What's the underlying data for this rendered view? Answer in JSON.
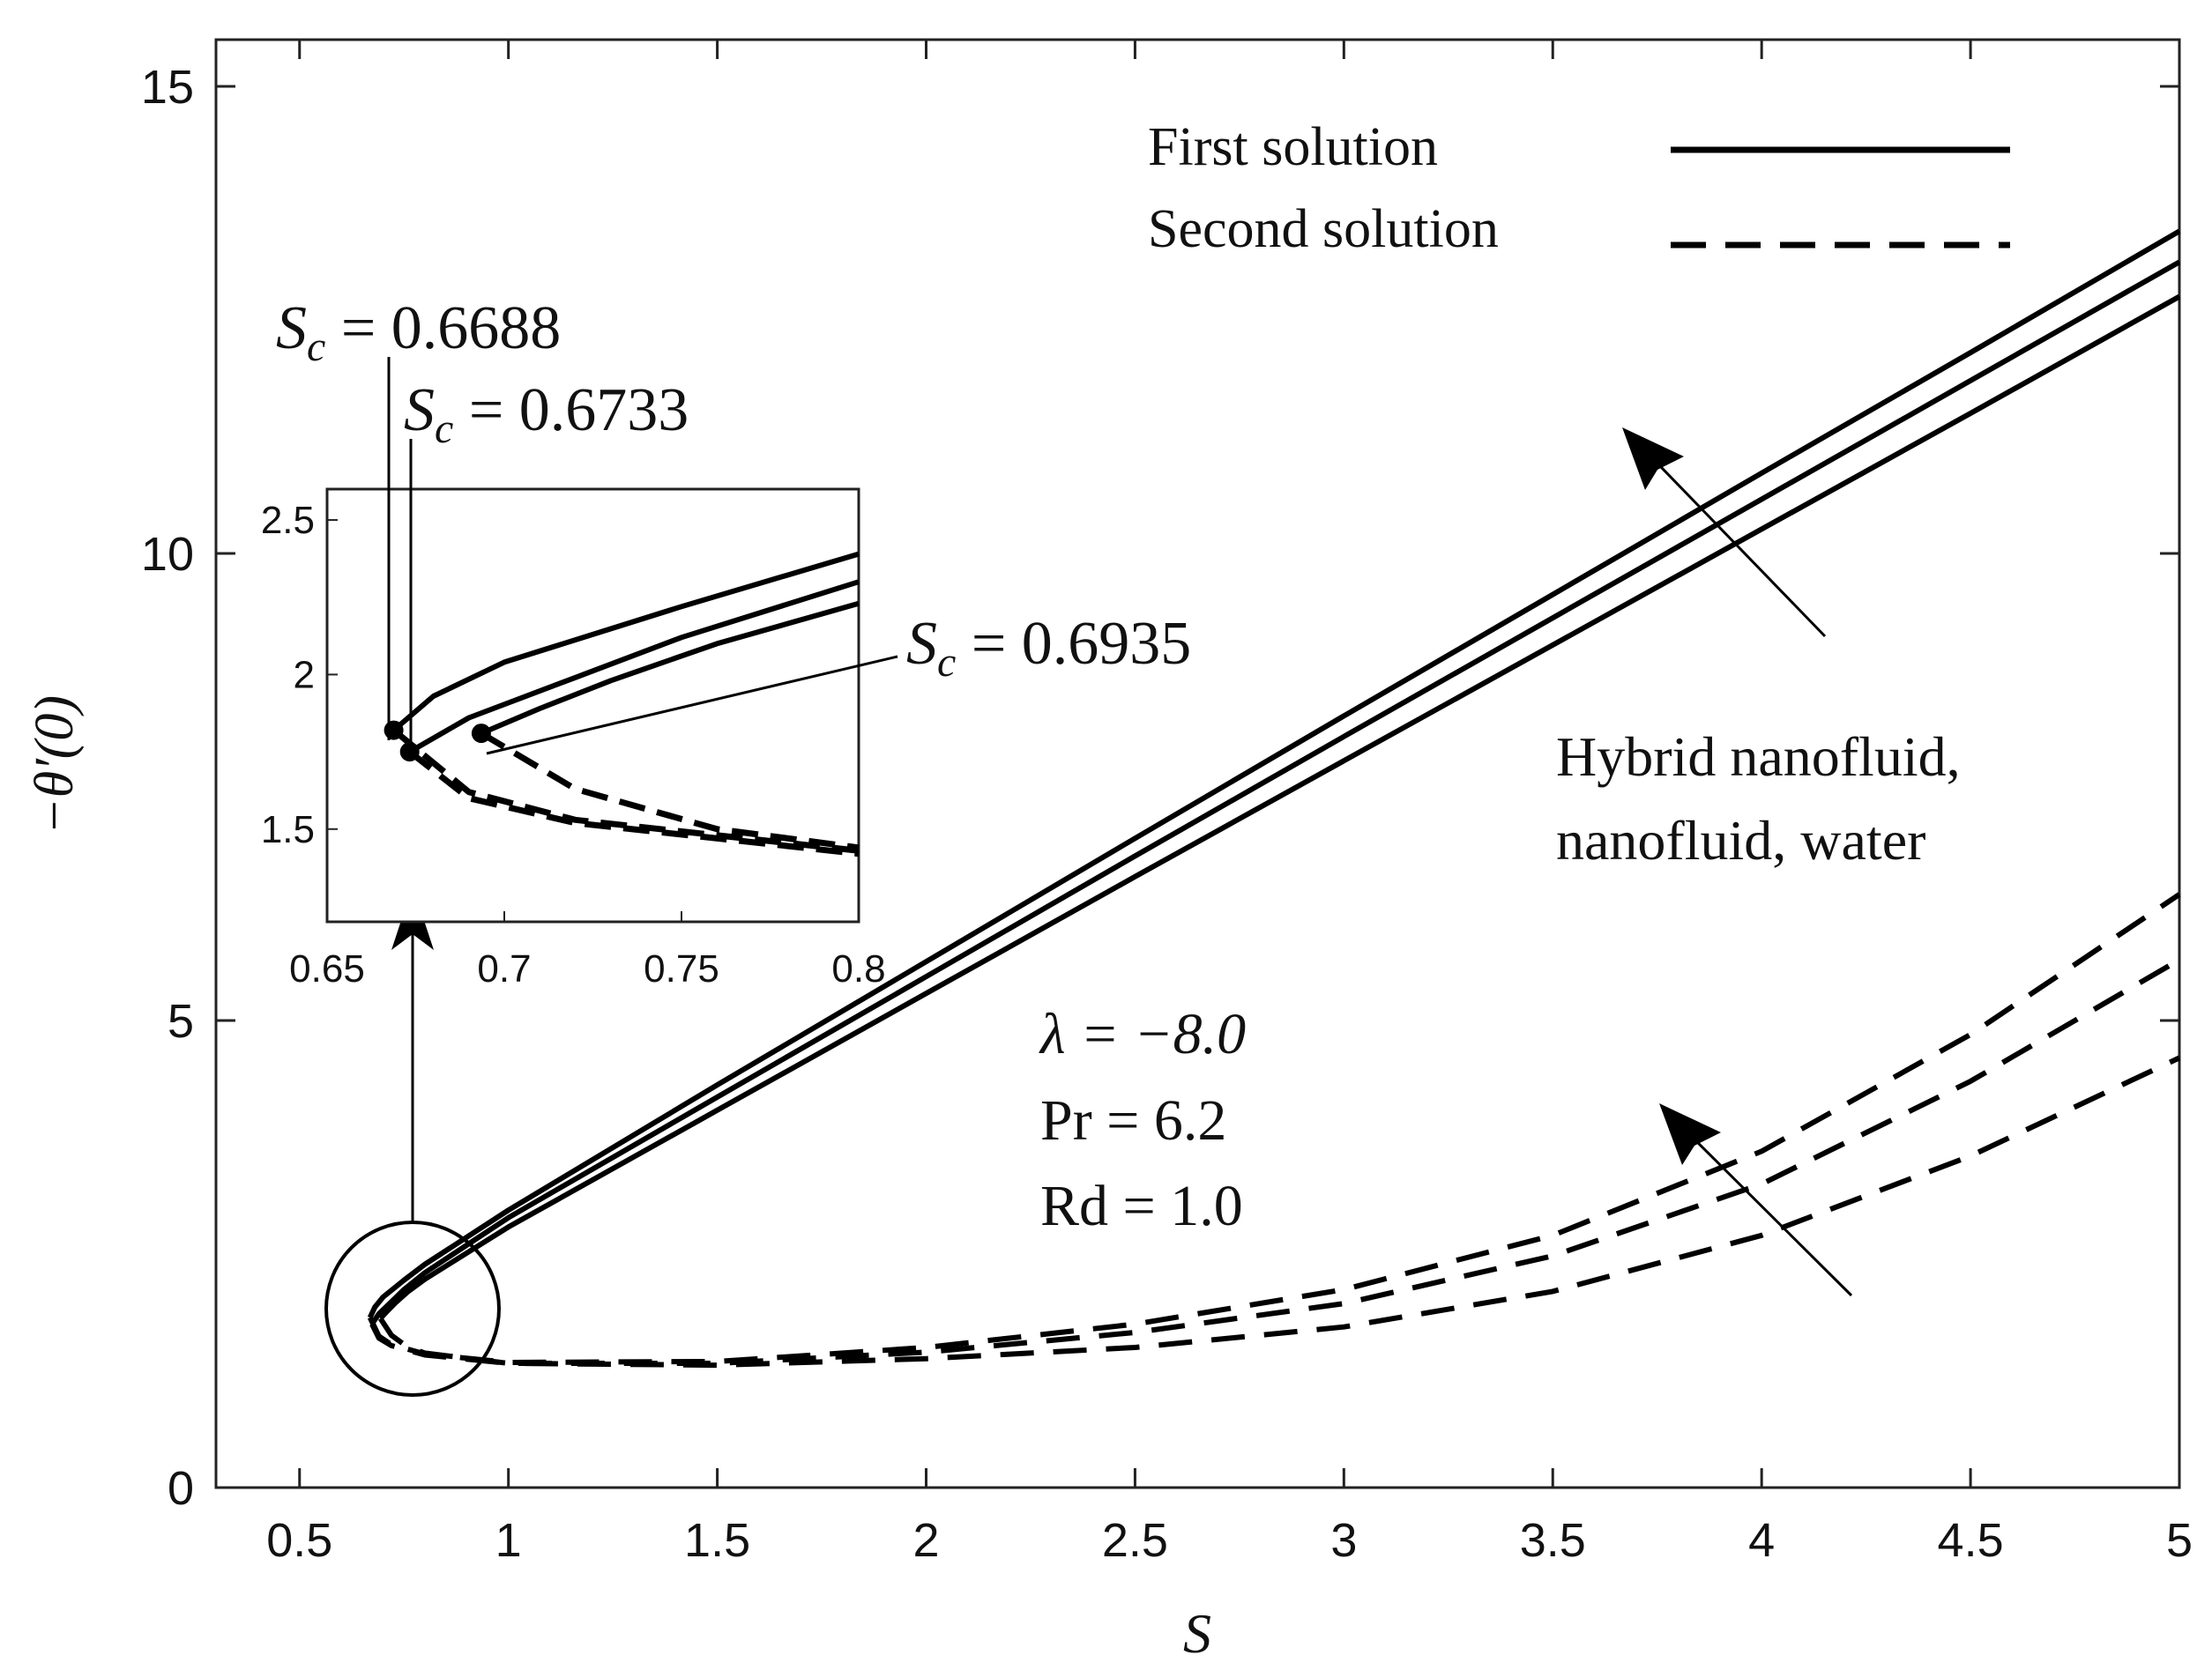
{
  "chart_data": {
    "type": "line",
    "xlabel": "S",
    "ylabel": "−θ′(0)",
    "xlim": [
      0.3,
      5
    ],
    "ylim": [
      0,
      15.5
    ],
    "xticks": [
      0.5,
      1,
      1.5,
      2,
      2.5,
      3,
      3.5,
      4,
      4.5,
      5
    ],
    "xtick_labels": [
      "0.5",
      "1",
      "1.5",
      "2",
      "2.5",
      "3",
      "3.5",
      "4",
      "4.5",
      "5"
    ],
    "yticks": [
      0,
      5,
      10,
      15
    ],
    "ytick_labels": [
      "0",
      "5",
      "10",
      "15"
    ],
    "legend": {
      "position": "top-right",
      "entries": [
        {
          "label": "First solution",
          "style": "solid"
        },
        {
          "label": "Second solution",
          "style": "dashed"
        }
      ]
    },
    "params": {
      "lambda": "λ = −8.0",
      "pr": "Pr = 6.2",
      "rd": "Rd = 1.0"
    },
    "direction_label": {
      "line1": "Hybrid nanofluid,",
      "line2": "nanofluid, water"
    },
    "critical_labels": [
      {
        "prefix": "S",
        "sub": "c",
        "value": " = 0.6688"
      },
      {
        "prefix": "S",
        "sub": "c",
        "value": " = 0.6733"
      },
      {
        "prefix": "S",
        "sub": "c",
        "value": " = 0.6935"
      }
    ],
    "series": [
      {
        "name": "Hybrid nanofluid",
        "critical_point": [
          0.6688,
          1.82
        ],
        "first": [
          [
            0.6688,
            1.82
          ],
          [
            0.68,
            1.93
          ],
          [
            0.7,
            2.04
          ],
          [
            0.75,
            2.22
          ],
          [
            0.8,
            2.39
          ],
          [
            1,
            2.97
          ],
          [
            1.5,
            4.31
          ],
          [
            2,
            5.63
          ],
          [
            2.5,
            6.95
          ],
          [
            3,
            8.26
          ],
          [
            3.5,
            9.56
          ],
          [
            4,
            10.86
          ],
          [
            4.5,
            12.15
          ],
          [
            5,
            13.45
          ]
        ],
        "second": [
          [
            0.6688,
            1.82
          ],
          [
            0.69,
            1.62
          ],
          [
            0.72,
            1.53
          ],
          [
            0.8,
            1.43
          ],
          [
            1,
            1.34
          ],
          [
            1.5,
            1.35
          ],
          [
            2,
            1.5
          ],
          [
            2.5,
            1.75
          ],
          [
            3,
            2.12
          ],
          [
            3.5,
            2.7
          ],
          [
            4,
            3.6
          ],
          [
            4.5,
            4.85
          ],
          [
            5,
            6.35
          ]
        ]
      },
      {
        "name": "Nanofluid",
        "critical_point": [
          0.6733,
          1.75
        ],
        "first": [
          [
            0.6733,
            1.75
          ],
          [
            0.69,
            1.86
          ],
          [
            0.72,
            1.99
          ],
          [
            0.75,
            2.12
          ],
          [
            0.8,
            2.3
          ],
          [
            1,
            2.89
          ],
          [
            1.5,
            4.18
          ],
          [
            2,
            5.47
          ],
          [
            2.5,
            6.76
          ],
          [
            3,
            8.04
          ],
          [
            3.5,
            9.31
          ],
          [
            4,
            10.58
          ],
          [
            4.5,
            11.85
          ],
          [
            5,
            13.12
          ]
        ],
        "second": [
          [
            0.6733,
            1.75
          ],
          [
            0.69,
            1.6
          ],
          [
            0.72,
            1.52
          ],
          [
            0.8,
            1.42
          ],
          [
            1,
            1.33
          ],
          [
            1.5,
            1.33
          ],
          [
            2,
            1.45
          ],
          [
            2.5,
            1.66
          ],
          [
            3,
            1.97
          ],
          [
            3.5,
            2.48
          ],
          [
            4,
            3.25
          ],
          [
            4.5,
            4.35
          ],
          [
            5,
            5.65
          ]
        ]
      },
      {
        "name": "Water",
        "critical_point": [
          0.6935,
          1.81
        ],
        "first": [
          [
            0.6935,
            1.81
          ],
          [
            0.71,
            1.89
          ],
          [
            0.73,
            1.98
          ],
          [
            0.76,
            2.1
          ],
          [
            0.8,
            2.23
          ],
          [
            1,
            2.79
          ],
          [
            1.5,
            4.04
          ],
          [
            2,
            5.29
          ],
          [
            2.5,
            6.54
          ],
          [
            3,
            7.78
          ],
          [
            3.5,
            9.02
          ],
          [
            4,
            10.26
          ],
          [
            4.5,
            11.5
          ],
          [
            5,
            12.75
          ]
        ],
        "second": [
          [
            0.6935,
            1.81
          ],
          [
            0.72,
            1.63
          ],
          [
            0.76,
            1.5
          ],
          [
            0.8,
            1.44
          ],
          [
            1,
            1.33
          ],
          [
            1.5,
            1.31
          ],
          [
            2,
            1.38
          ],
          [
            2.5,
            1.5
          ],
          [
            3,
            1.72
          ],
          [
            3.5,
            2.1
          ],
          [
            4,
            2.7
          ],
          [
            4.5,
            3.55
          ],
          [
            5,
            4.6
          ]
        ]
      }
    ],
    "inset": {
      "xlim": [
        0.65,
        0.8
      ],
      "ylim": [
        1.2,
        2.6
      ],
      "xticks": [
        0.65,
        0.7,
        0.75,
        0.8
      ],
      "xtick_labels": [
        "0.65",
        "0.7",
        "0.75",
        "0.8"
      ],
      "yticks": [
        1.5,
        2,
        2.5
      ],
      "ytick_labels": [
        "1.5",
        "2",
        "2.5"
      ]
    }
  }
}
